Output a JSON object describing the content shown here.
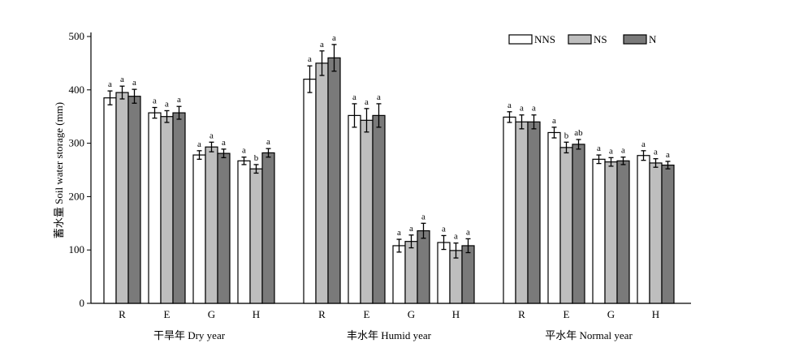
{
  "chart_data": {
    "type": "bar",
    "ylabel": "蓄水量 Soil water storage (mm)",
    "ylim": [
      0,
      500
    ],
    "yticks": [
      0,
      100,
      200,
      300,
      400,
      500
    ],
    "legend_position": "top-right",
    "colors": {
      "NNS": "#ffffff",
      "NS": "#bebebe",
      "N": "#7a7a7a",
      "stroke": "#000000"
    },
    "series_names": [
      "NNS",
      "NS",
      "N"
    ],
    "groups": [
      {
        "label": "干旱年 Dry year",
        "categories": [
          {
            "name": "R",
            "values": [
              385,
              395,
              388
            ],
            "errors": [
              13,
              12,
              13
            ],
            "sig": [
              "a",
              "a",
              "a"
            ]
          },
          {
            "name": "E",
            "values": [
              357,
              350,
              357
            ],
            "errors": [
              10,
              11,
              12
            ],
            "sig": [
              "a",
              "a",
              "a"
            ]
          },
          {
            "name": "G",
            "values": [
              278,
              293,
              281
            ],
            "errors": [
              8,
              9,
              8
            ],
            "sig": [
              "a",
              "a",
              "a"
            ]
          },
          {
            "name": "H",
            "values": [
              267,
              252,
              282
            ],
            "errors": [
              7,
              8,
              8
            ],
            "sig": [
              "a",
              "b",
              "a"
            ]
          }
        ]
      },
      {
        "label": "丰水年 Humid year",
        "categories": [
          {
            "name": "R",
            "values": [
              420,
              450,
              460
            ],
            "errors": [
              25,
              23,
              25
            ],
            "sig": [
              "a",
              "a",
              "a"
            ]
          },
          {
            "name": "E",
            "values": [
              352,
              343,
              352
            ],
            "errors": [
              22,
              22,
              22
            ],
            "sig": [
              "a",
              "a",
              "a"
            ]
          },
          {
            "name": "G",
            "values": [
              108,
              116,
              136
            ],
            "errors": [
              12,
              12,
              14
            ],
            "sig": [
              "a",
              "a",
              "a"
            ]
          },
          {
            "name": "H",
            "values": [
              114,
              99,
              108
            ],
            "errors": [
              13,
              14,
              13
            ],
            "sig": [
              "a",
              "a",
              "a"
            ]
          }
        ]
      },
      {
        "label": "平水年 Normal year",
        "categories": [
          {
            "name": "R",
            "values": [
              349,
              340,
              340
            ],
            "errors": [
              10,
              13,
              13
            ],
            "sig": [
              "a",
              "a",
              "a"
            ]
          },
          {
            "name": "E",
            "values": [
              320,
              292,
              298
            ],
            "errors": [
              10,
              10,
              9
            ],
            "sig": [
              "a",
              "b",
              "ab"
            ]
          },
          {
            "name": "G",
            "values": [
              270,
              265,
              267
            ],
            "errors": [
              8,
              8,
              7
            ],
            "sig": [
              "a",
              "a",
              "a"
            ]
          },
          {
            "name": "H",
            "values": [
              277,
              263,
              259
            ],
            "errors": [
              9,
              8,
              7
            ],
            "sig": [
              "a",
              "a",
              "a"
            ]
          }
        ]
      }
    ]
  }
}
